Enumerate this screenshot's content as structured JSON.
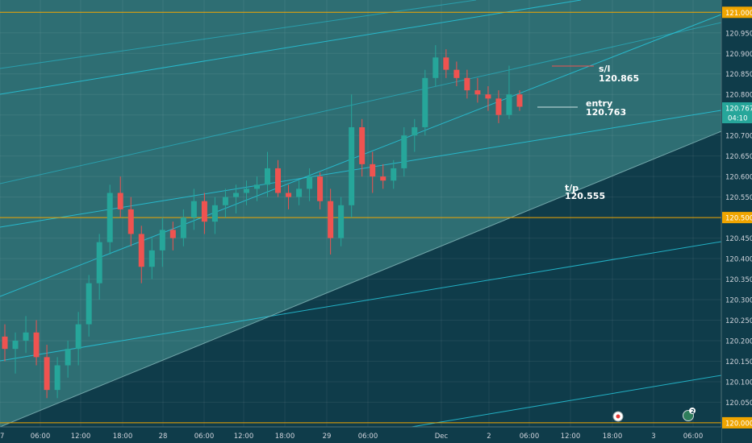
{
  "chart_data": {
    "type": "candlestick",
    "x_labels": [
      "7",
      "06:00",
      "12:00",
      "18:00",
      "28",
      "06:00",
      "12:00",
      "18:00",
      "29",
      "06:00",
      "Dec",
      "2",
      "06:00",
      "12:00",
      "18:00",
      "3",
      "06:00"
    ],
    "y_ticks": [
      "121.000",
      "120.950",
      "120.900",
      "120.850",
      "120.800",
      "120.750",
      "120.700",
      "120.650",
      "120.600",
      "120.550",
      "120.500",
      "120.450",
      "120.400",
      "120.350",
      "120.300",
      "120.250",
      "120.200",
      "120.150",
      "120.100",
      "120.050",
      "120.000"
    ],
    "ylim": [
      119.99,
      121.03
    ],
    "horizontal_levels": [
      {
        "value": 121.0,
        "label": "121.000",
        "color": "#f0a500"
      },
      {
        "value": 120.5,
        "label": "120.500",
        "color": "#f0a500"
      },
      {
        "value": 120.0,
        "label": "120.000",
        "color": "#f0a500"
      }
    ],
    "last_price": {
      "value": 120.767,
      "label": "120.767",
      "countdown": "04:10"
    },
    "annotations": [
      {
        "id": "sl",
        "title": "s/l",
        "value": "120.865"
      },
      {
        "id": "entry",
        "title": "entry",
        "value": "120.763"
      },
      {
        "id": "tp",
        "title": "t/p",
        "value": "120.555"
      }
    ],
    "candles": [
      {
        "o": 120.21,
        "h": 120.24,
        "l": 120.15,
        "c": 120.18
      },
      {
        "o": 120.18,
        "h": 120.22,
        "l": 120.12,
        "c": 120.2
      },
      {
        "o": 120.2,
        "h": 120.26,
        "l": 120.17,
        "c": 120.22
      },
      {
        "o": 120.22,
        "h": 120.25,
        "l": 120.14,
        "c": 120.16
      },
      {
        "o": 120.16,
        "h": 120.19,
        "l": 120.06,
        "c": 120.08
      },
      {
        "o": 120.08,
        "h": 120.16,
        "l": 120.06,
        "c": 120.14
      },
      {
        "o": 120.14,
        "h": 120.2,
        "l": 120.11,
        "c": 120.18
      },
      {
        "o": 120.18,
        "h": 120.27,
        "l": 120.14,
        "c": 120.24
      },
      {
        "o": 120.24,
        "h": 120.36,
        "l": 120.21,
        "c": 120.34
      },
      {
        "o": 120.34,
        "h": 120.46,
        "l": 120.3,
        "c": 120.44
      },
      {
        "o": 120.44,
        "h": 120.58,
        "l": 120.41,
        "c": 120.56
      },
      {
        "o": 120.56,
        "h": 120.6,
        "l": 120.5,
        "c": 120.52
      },
      {
        "o": 120.52,
        "h": 120.55,
        "l": 120.43,
        "c": 120.46
      },
      {
        "o": 120.46,
        "h": 120.48,
        "l": 120.34,
        "c": 120.38
      },
      {
        "o": 120.38,
        "h": 120.45,
        "l": 120.35,
        "c": 120.42
      },
      {
        "o": 120.42,
        "h": 120.5,
        "l": 120.38,
        "c": 120.47
      },
      {
        "o": 120.47,
        "h": 120.49,
        "l": 120.42,
        "c": 120.45
      },
      {
        "o": 120.45,
        "h": 120.52,
        "l": 120.43,
        "c": 120.5
      },
      {
        "o": 120.5,
        "h": 120.57,
        "l": 120.47,
        "c": 120.54
      },
      {
        "o": 120.54,
        "h": 120.56,
        "l": 120.46,
        "c": 120.49
      },
      {
        "o": 120.49,
        "h": 120.55,
        "l": 120.46,
        "c": 120.53
      },
      {
        "o": 120.53,
        "h": 120.57,
        "l": 120.5,
        "c": 120.55
      },
      {
        "o": 120.55,
        "h": 120.58,
        "l": 120.51,
        "c": 120.56
      },
      {
        "o": 120.56,
        "h": 120.59,
        "l": 120.53,
        "c": 120.57
      },
      {
        "o": 120.57,
        "h": 120.6,
        "l": 120.54,
        "c": 120.58
      },
      {
        "o": 120.58,
        "h": 120.66,
        "l": 120.55,
        "c": 120.62
      },
      {
        "o": 120.62,
        "h": 120.64,
        "l": 120.55,
        "c": 120.56
      },
      {
        "o": 120.56,
        "h": 120.58,
        "l": 120.52,
        "c": 120.55
      },
      {
        "o": 120.55,
        "h": 120.59,
        "l": 120.53,
        "c": 120.57
      },
      {
        "o": 120.57,
        "h": 120.62,
        "l": 120.54,
        "c": 120.6
      },
      {
        "o": 120.6,
        "h": 120.61,
        "l": 120.52,
        "c": 120.54
      },
      {
        "o": 120.54,
        "h": 120.57,
        "l": 120.41,
        "c": 120.45
      },
      {
        "o": 120.45,
        "h": 120.55,
        "l": 120.43,
        "c": 120.53
      },
      {
        "o": 120.53,
        "h": 120.8,
        "l": 120.5,
        "c": 120.72
      },
      {
        "o": 120.72,
        "h": 120.74,
        "l": 120.6,
        "c": 120.63
      },
      {
        "o": 120.63,
        "h": 120.66,
        "l": 120.56,
        "c": 120.6
      },
      {
        "o": 120.6,
        "h": 120.63,
        "l": 120.57,
        "c": 120.59
      },
      {
        "o": 120.59,
        "h": 120.64,
        "l": 120.57,
        "c": 120.62
      },
      {
        "o": 120.62,
        "h": 120.72,
        "l": 120.6,
        "c": 120.7
      },
      {
        "o": 120.7,
        "h": 120.74,
        "l": 120.66,
        "c": 120.72
      },
      {
        "o": 120.72,
        "h": 120.86,
        "l": 120.7,
        "c": 120.84
      },
      {
        "o": 120.84,
        "h": 120.92,
        "l": 120.82,
        "c": 120.89
      },
      {
        "o": 120.89,
        "h": 120.91,
        "l": 120.84,
        "c": 120.86
      },
      {
        "o": 120.86,
        "h": 120.88,
        "l": 120.82,
        "c": 120.84
      },
      {
        "o": 120.84,
        "h": 120.86,
        "l": 120.79,
        "c": 120.81
      },
      {
        "o": 120.81,
        "h": 120.84,
        "l": 120.78,
        "c": 120.8
      },
      {
        "o": 120.8,
        "h": 120.82,
        "l": 120.76,
        "c": 120.79
      },
      {
        "o": 120.79,
        "h": 120.81,
        "l": 120.73,
        "c": 120.75
      },
      {
        "o": 120.75,
        "h": 120.87,
        "l": 120.74,
        "c": 120.8
      },
      {
        "o": 120.8,
        "h": 120.81,
        "l": 120.76,
        "c": 120.77
      }
    ],
    "colors": {
      "up": "#26a69a",
      "down": "#ef5350",
      "level": "#f0a500",
      "channel_line": "#26c6da",
      "upper_region": "#2e6e73",
      "lower_region": "#0f3c4a",
      "axis_bg": "#0f3c4a",
      "axis_text": "#d1d4dc",
      "price_tag": "#26a69a"
    },
    "grid": true,
    "event_markers": [
      {
        "icon": "flag-icon"
      },
      {
        "icon": "calendar-icon",
        "count": "2"
      }
    ]
  }
}
